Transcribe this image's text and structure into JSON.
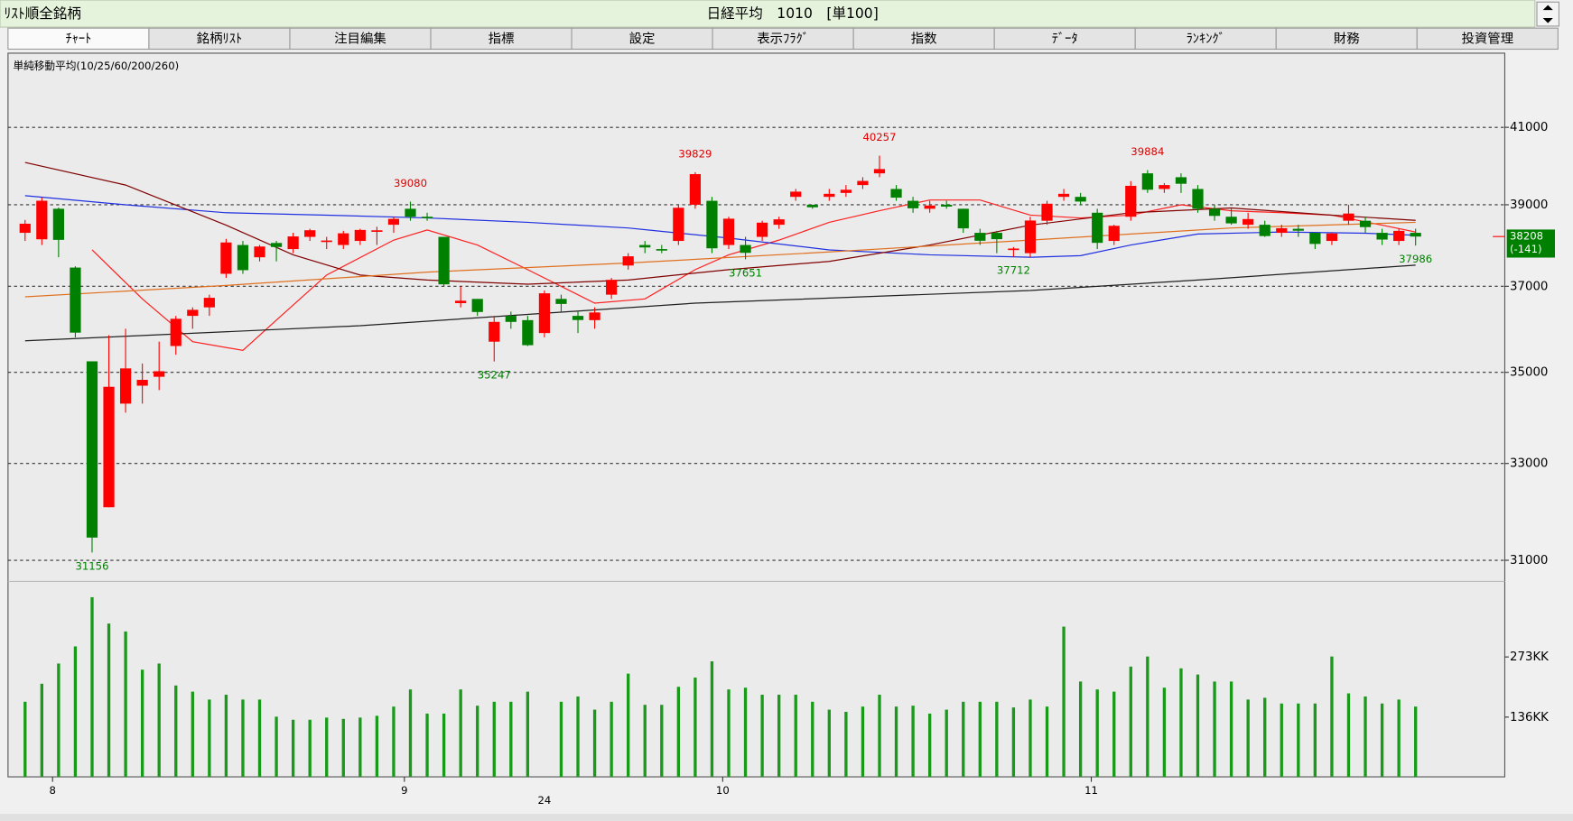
{
  "header": {
    "title": "ﾘｽﾄ順全銘柄",
    "center": "日経平均　1010　[単100]"
  },
  "tabs": [
    "ﾁｬｰﾄ",
    "銘柄ﾘｽﾄ",
    "注目編集",
    "指標",
    "設定",
    "表示ﾌﾗｸﾞ",
    "指数",
    "ﾃﾞｰﾀ",
    "ﾗﾝｷﾝｸﾞ",
    "財務",
    "投資管理"
  ],
  "chart_data": {
    "type": "candlestick",
    "indicator_title": "単純移動平均(10/25/60/200/260)",
    "categories": [
      null,
      null,
      "8",
      null,
      null,
      null,
      null,
      null,
      null,
      null,
      null,
      null,
      null,
      null,
      null,
      null,
      null,
      null,
      null,
      null,
      null,
      null,
      null,
      "9",
      null,
      null,
      null,
      null,
      null,
      null,
      null,
      null,
      null,
      null,
      null,
      null,
      null,
      null,
      null,
      null,
      null,
      null,
      "10",
      null,
      null,
      null,
      null,
      null,
      null,
      null,
      null,
      null,
      null,
      null,
      null,
      null,
      null,
      null,
      null,
      null,
      null,
      null,
      null,
      null,
      "11",
      null,
      null,
      null,
      null,
      null,
      null,
      null,
      null,
      null,
      null,
      null,
      null,
      null,
      null,
      null,
      null,
      null,
      null,
      null
    ],
    "year_label": {
      "index": 31,
      "label": "24"
    },
    "open": [
      38300,
      38140,
      38900,
      37450,
      35250,
      32080,
      34300,
      34700,
      34900,
      35600,
      36300,
      36500,
      37300,
      38000,
      37700,
      38050,
      37900,
      38200,
      38100,
      38000,
      38100,
      38350,
      38500,
      38900,
      38700,
      38200,
      36600,
      36700,
      35700,
      36300,
      36200,
      35900,
      36700,
      36300,
      36200,
      36800,
      37500,
      38000,
      37900,
      38100,
      39000,
      39100,
      38000,
      38000,
      38200,
      38500,
      39200,
      39000,
      39200,
      39300,
      39500,
      39800,
      39400,
      39100,
      38900,
      39000,
      38900,
      38300,
      38300,
      37900,
      37800,
      38600,
      39200,
      39200,
      38800,
      38100,
      38700,
      39800,
      39400,
      39700,
      39400,
      38900,
      38700,
      38500,
      38500,
      38300,
      38400,
      38300,
      38100,
      38600,
      38600,
      38300,
      38100,
      38300
    ],
    "high": [
      38620,
      39180,
      38930,
      37480,
      35250,
      35850,
      36000,
      35200,
      35700,
      36300,
      36500,
      36800,
      38150,
      38100,
      38000,
      38100,
      38300,
      38400,
      38200,
      38350,
      38400,
      38450,
      38700,
      39080,
      38800,
      38200,
      37000,
      36700,
      36300,
      36400,
      36300,
      36900,
      36800,
      36400,
      36500,
      37200,
      37800,
      38100,
      38000,
      39000,
      39829,
      39200,
      38700,
      38200,
      38600,
      38700,
      39400,
      39000,
      39400,
      39500,
      39700,
      40257,
      39500,
      39200,
      39100,
      39100,
      38900,
      38400,
      38350,
      37950,
      38700,
      39100,
      39400,
      39300,
      38900,
      38500,
      39600,
      39884,
      39550,
      39800,
      39500,
      39000,
      38900,
      38800,
      38600,
      38500,
      38500,
      38300,
      38300,
      39000,
      38700,
      38400,
      38400,
      38400
    ],
    "low": [
      38100,
      38000,
      37700,
      35800,
      31156,
      32080,
      34100,
      34300,
      34600,
      35400,
      36000,
      36300,
      37200,
      37300,
      37600,
      37600,
      37800,
      38100,
      37900,
      37900,
      38000,
      38000,
      38300,
      38600,
      38600,
      37000,
      36500,
      36300,
      35247,
      36000,
      35600,
      35800,
      36400,
      35900,
      36000,
      36700,
      37400,
      37800,
      37800,
      38000,
      38900,
      37800,
      37900,
      37651,
      38100,
      38400,
      39100,
      38900,
      39100,
      39200,
      39400,
      39700,
      39100,
      38800,
      38800,
      38900,
      38300,
      38000,
      37800,
      37712,
      37700,
      38500,
      39100,
      39000,
      37900,
      38000,
      38600,
      39300,
      39300,
      39300,
      38800,
      38600,
      38500,
      38400,
      38200,
      38200,
      38200,
      37900,
      38000,
      38500,
      38300,
      38000,
      38000,
      37986
    ],
    "close": [
      38526,
      39102,
      38126,
      35909,
      31458,
      34675,
      35089,
      34831,
      35025,
      36232,
      36442,
      36726,
      38062,
      37388,
      37963,
      37951,
      38211,
      38364,
      38110,
      38288,
      38371,
      38362,
      38647,
      38700,
      38686,
      37047,
      36657,
      36391,
      36159,
      36159,
      35619,
      36833,
      36581,
      36203,
      36380,
      37155,
      37723,
      37940,
      37870,
      38925,
      39780,
      37919,
      38651,
      37808,
      38552,
      38635,
      39332,
      38937,
      39277,
      39380,
      39605,
      39910,
      39180,
      38911,
      38981,
      38954,
      38411,
      38104,
      38143,
      37913,
      38605,
      39027,
      39277,
      39081,
      38053,
      38474,
      39480,
      39381,
      39500,
      39533,
      38900,
      38721,
      38535,
      38642,
      38220,
      38414,
      38352,
      38026,
      38283,
      38780,
      38442,
      38134,
      38349,
      38208
    ],
    "volume": [
      171,
      212,
      258,
      297,
      409,
      349,
      331,
      244,
      258,
      208,
      194,
      176,
      187,
      176,
      176,
      137,
      130,
      130,
      135,
      132,
      135,
      139,
      160,
      199,
      144,
      144,
      199,
      162,
      171,
      171,
      194,
      null,
      171,
      183,
      153,
      171,
      235,
      164,
      164,
      205,
      226,
      263,
      199,
      203,
      187,
      187,
      187,
      171,
      153,
      148,
      160,
      187,
      160,
      162,
      144,
      153,
      171,
      171,
      171,
      158,
      176,
      160,
      342,
      217,
      199,
      194,
      251,
      274,
      203,
      247,
      233,
      217,
      217,
      176,
      180,
      167,
      167,
      167,
      274,
      190,
      183,
      167,
      176,
      160
    ],
    "up_color": "#ff0000",
    "down_color": "#008000",
    "volume_color": "#1a9a1a",
    "log_scale": true,
    "ylim": [
      30600,
      43000
    ],
    "yticks": [
      31000,
      33000,
      35000,
      37000,
      39000,
      41000
    ],
    "grid": true,
    "volume_lim": [
      0,
      445
    ],
    "volume_ticks": [
      {
        "value": 273,
        "label": "273KK"
      },
      {
        "value": 136,
        "label": "136KK"
      }
    ],
    "moving_averages": [
      {
        "color": "#ff2020",
        "x": [
          4,
          7,
          10,
          13,
          15,
          18,
          22,
          24,
          27,
          30,
          34,
          37,
          40,
          42,
          45,
          48,
          51,
          54,
          57,
          60,
          63,
          66,
          69,
          72,
          75,
          78,
          81,
          83
        ],
        "values": [
          37880,
          36700,
          35700,
          35500,
          36200,
          37270,
          38120,
          38370,
          38000,
          37400,
          36600,
          36700,
          37400,
          37760,
          38120,
          38560,
          38850,
          39120,
          39120,
          38740,
          38670,
          38740,
          39000,
          38850,
          38800,
          38740,
          38490,
          38320
        ]
      },
      {
        "color": "#2030e0",
        "x": [
          0,
          6,
          12,
          18,
          24,
          30,
          36,
          42,
          48,
          54,
          60,
          63,
          66,
          70,
          75,
          80,
          83
        ],
        "values": [
          39230,
          39000,
          38800,
          38740,
          38670,
          38560,
          38420,
          38170,
          37880,
          37760,
          37700,
          37740,
          38000,
          38270,
          38320,
          38290,
          38240
        ]
      },
      {
        "color": "#800000",
        "x": [
          0,
          6,
          12,
          16,
          20,
          24,
          30,
          36,
          42,
          48,
          54,
          60,
          66,
          72,
          78,
          83
        ],
        "values": [
          40080,
          39500,
          38490,
          37760,
          37270,
          37150,
          37050,
          37150,
          37400,
          37600,
          38000,
          38490,
          38800,
          38920,
          38740,
          38610
        ]
      },
      {
        "color": "#e07020",
        "x": [
          0,
          12,
          24,
          36,
          48,
          60,
          72,
          83
        ],
        "values": [
          36750,
          37020,
          37340,
          37560,
          37830,
          38120,
          38420,
          38560
        ]
      },
      {
        "color": "#202020",
        "x": [
          0,
          20,
          40,
          60,
          70,
          83
        ],
        "values": [
          35720,
          36070,
          36600,
          36900,
          37150,
          37510
        ]
      }
    ],
    "high_labels": [
      {
        "index": 23,
        "value": 39080
      },
      {
        "index": 40,
        "value": 39829
      },
      {
        "index": 51,
        "value": 40257
      },
      {
        "index": 67,
        "value": 39884
      }
    ],
    "low_labels": [
      {
        "index": 4,
        "value": 31156
      },
      {
        "index": 28,
        "value": 35247
      },
      {
        "index": 43,
        "value": 37651
      },
      {
        "index": 59,
        "value": 37712
      },
      {
        "index": 83,
        "value": 37986
      }
    ],
    "last_close": 38208,
    "change": {
      "value": -141,
      "label": "(-141)"
    }
  }
}
